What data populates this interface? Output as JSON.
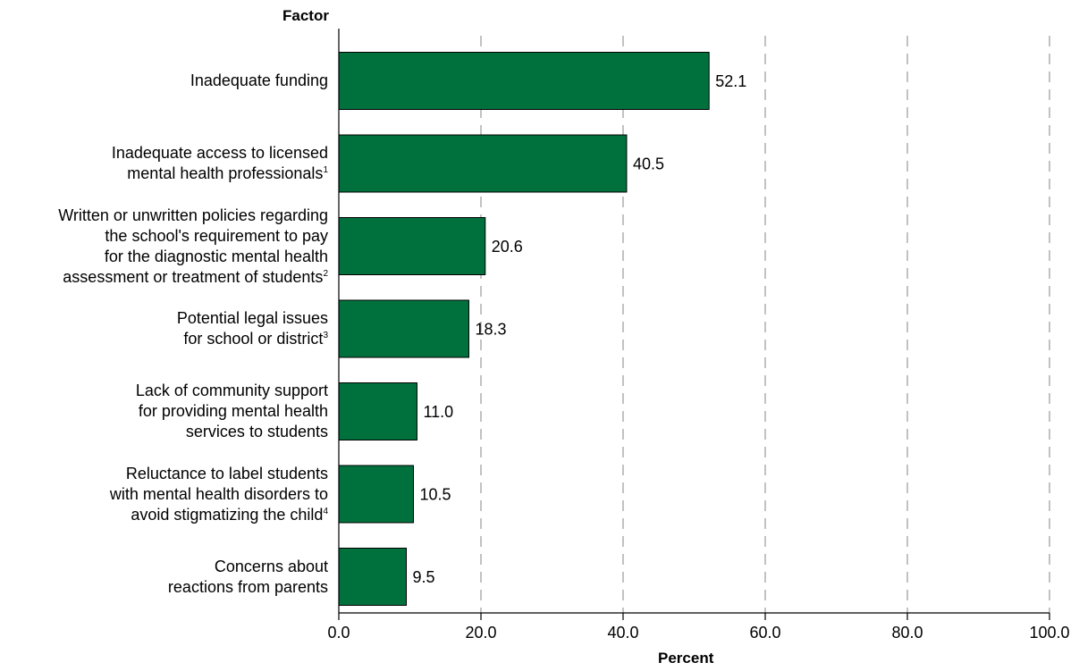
{
  "chart_data": {
    "type": "bar",
    "orientation": "horizontal",
    "y_axis_title": "Factor",
    "x_axis_title": "Percent",
    "categories": [
      {
        "lines": [
          "Inadequate funding"
        ],
        "note": ""
      },
      {
        "lines": [
          "Inadequate access to licensed",
          "mental health professionals"
        ],
        "note": "1"
      },
      {
        "lines": [
          "Written or unwritten policies regarding",
          "the school's requirement to pay",
          "for the diagnostic mental health",
          "assessment or treatment of students"
        ],
        "note": "2"
      },
      {
        "lines": [
          "Potential legal issues",
          "for school or district"
        ],
        "note": "3"
      },
      {
        "lines": [
          "Lack of community support",
          "for providing mental health",
          "services to students"
        ],
        "note": ""
      },
      {
        "lines": [
          "Reluctance to label students",
          "with mental health disorders to",
          "avoid stigmatizing the child"
        ],
        "note": "4"
      },
      {
        "lines": [
          "Concerns about",
          "reactions from parents"
        ],
        "note": ""
      }
    ],
    "values": [
      52.1,
      40.5,
      20.6,
      18.3,
      11.0,
      10.5,
      9.5
    ],
    "value_labels": [
      "52.1",
      "40.5",
      "20.6",
      "18.3",
      "11.0",
      "10.5",
      "9.5"
    ],
    "xlim": [
      0,
      100
    ],
    "x_ticks": [
      0,
      20,
      40,
      60,
      80,
      100
    ],
    "x_tick_labels": [
      "0.0",
      "20.0",
      "40.0",
      "60.0",
      "80.0",
      "100.0"
    ],
    "grid": "vertical dashed",
    "bar_color": "#00703c"
  }
}
